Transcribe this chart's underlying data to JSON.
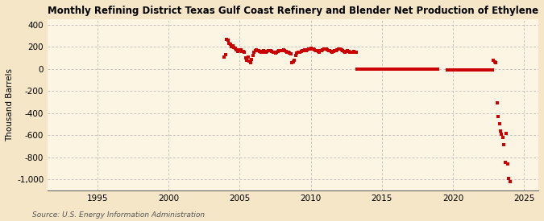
{
  "title": "Monthly Refining District Texas Gulf Coast Refinery and Blender Net Production of Ethylene",
  "ylabel": "Thousand Barrels",
  "source": "Source: U.S. Energy Information Administration",
  "background_color": "#f5e6c8",
  "plot_background_color": "#fdf5e4",
  "marker_color": "#cc0000",
  "marker": "s",
  "markersize": 2.5,
  "ylim": [
    -1100,
    450
  ],
  "yticks": [
    -1000,
    -800,
    -600,
    -400,
    -200,
    0,
    200,
    400
  ],
  "xlim_year": [
    1991.5,
    2026.0
  ],
  "xticks_years": [
    1995,
    2000,
    2005,
    2010,
    2015,
    2020,
    2025
  ],
  "data_points": [
    [
      2003.917,
      110
    ],
    [
      2004.0,
      130
    ],
    [
      2004.083,
      265
    ],
    [
      2004.167,
      258
    ],
    [
      2004.25,
      230
    ],
    [
      2004.333,
      220
    ],
    [
      2004.417,
      200
    ],
    [
      2004.5,
      210
    ],
    [
      2004.583,
      195
    ],
    [
      2004.667,
      185
    ],
    [
      2004.75,
      170
    ],
    [
      2004.833,
      155
    ],
    [
      2004.917,
      165
    ],
    [
      2005.0,
      175
    ],
    [
      2005.083,
      170
    ],
    [
      2005.167,
      160
    ],
    [
      2005.25,
      155
    ],
    [
      2005.333,
      150
    ],
    [
      2005.417,
      100
    ],
    [
      2005.5,
      80
    ],
    [
      2005.583,
      105
    ],
    [
      2005.667,
      70
    ],
    [
      2005.75,
      55
    ],
    [
      2005.833,
      85
    ],
    [
      2005.917,
      125
    ],
    [
      2006.0,
      150
    ],
    [
      2006.083,
      165
    ],
    [
      2006.167,
      172
    ],
    [
      2006.25,
      168
    ],
    [
      2006.333,
      162
    ],
    [
      2006.417,
      158
    ],
    [
      2006.5,
      153
    ],
    [
      2006.583,
      158
    ],
    [
      2006.667,
      163
    ],
    [
      2006.75,
      153
    ],
    [
      2006.833,
      148
    ],
    [
      2006.917,
      158
    ],
    [
      2007.0,
      163
    ],
    [
      2007.083,
      168
    ],
    [
      2007.167,
      163
    ],
    [
      2007.25,
      158
    ],
    [
      2007.333,
      153
    ],
    [
      2007.417,
      148
    ],
    [
      2007.5,
      143
    ],
    [
      2007.583,
      153
    ],
    [
      2007.667,
      158
    ],
    [
      2007.75,
      163
    ],
    [
      2007.833,
      168
    ],
    [
      2007.917,
      163
    ],
    [
      2008.0,
      168
    ],
    [
      2008.083,
      173
    ],
    [
      2008.167,
      163
    ],
    [
      2008.25,
      158
    ],
    [
      2008.333,
      153
    ],
    [
      2008.417,
      148
    ],
    [
      2008.5,
      143
    ],
    [
      2008.583,
      133
    ],
    [
      2008.667,
      55
    ],
    [
      2008.75,
      60
    ],
    [
      2008.833,
      75
    ],
    [
      2008.917,
      118
    ],
    [
      2009.0,
      143
    ],
    [
      2009.083,
      148
    ],
    [
      2009.167,
      153
    ],
    [
      2009.25,
      148
    ],
    [
      2009.333,
      158
    ],
    [
      2009.417,
      163
    ],
    [
      2009.5,
      168
    ],
    [
      2009.583,
      173
    ],
    [
      2009.667,
      163
    ],
    [
      2009.75,
      173
    ],
    [
      2009.833,
      178
    ],
    [
      2009.917,
      183
    ],
    [
      2010.0,
      188
    ],
    [
      2010.083,
      183
    ],
    [
      2010.167,
      178
    ],
    [
      2010.25,
      173
    ],
    [
      2010.333,
      168
    ],
    [
      2010.417,
      163
    ],
    [
      2010.5,
      158
    ],
    [
      2010.583,
      153
    ],
    [
      2010.667,
      163
    ],
    [
      2010.75,
      168
    ],
    [
      2010.833,
      173
    ],
    [
      2010.917,
      178
    ],
    [
      2011.0,
      183
    ],
    [
      2011.083,
      178
    ],
    [
      2011.167,
      173
    ],
    [
      2011.25,
      168
    ],
    [
      2011.333,
      163
    ],
    [
      2011.417,
      158
    ],
    [
      2011.5,
      153
    ],
    [
      2011.583,
      158
    ],
    [
      2011.667,
      163
    ],
    [
      2011.75,
      168
    ],
    [
      2011.833,
      173
    ],
    [
      2011.917,
      178
    ],
    [
      2012.0,
      183
    ],
    [
      2012.083,
      178
    ],
    [
      2012.167,
      173
    ],
    [
      2012.25,
      163
    ],
    [
      2012.333,
      158
    ],
    [
      2012.417,
      153
    ],
    [
      2012.5,
      158
    ],
    [
      2012.583,
      163
    ],
    [
      2012.667,
      158
    ],
    [
      2012.75,
      153
    ],
    [
      2012.833,
      148
    ],
    [
      2012.917,
      153
    ],
    [
      2013.0,
      158
    ],
    [
      2013.083,
      153
    ],
    [
      2013.167,
      148
    ],
    [
      2013.25,
      0
    ],
    [
      2013.333,
      0
    ],
    [
      2013.417,
      0
    ],
    [
      2013.5,
      0
    ],
    [
      2013.583,
      0
    ],
    [
      2013.667,
      0
    ],
    [
      2013.75,
      0
    ],
    [
      2013.833,
      0
    ],
    [
      2013.917,
      0
    ],
    [
      2014.0,
      0
    ],
    [
      2014.083,
      0
    ],
    [
      2014.167,
      0
    ],
    [
      2014.25,
      0
    ],
    [
      2014.333,
      0
    ],
    [
      2014.417,
      0
    ],
    [
      2014.5,
      0
    ],
    [
      2014.583,
      0
    ],
    [
      2014.667,
      0
    ],
    [
      2014.75,
      0
    ],
    [
      2014.833,
      0
    ],
    [
      2014.917,
      0
    ],
    [
      2015.0,
      0
    ],
    [
      2015.083,
      0
    ],
    [
      2015.167,
      0
    ],
    [
      2015.25,
      0
    ],
    [
      2015.333,
      0
    ],
    [
      2015.417,
      0
    ],
    [
      2015.5,
      0
    ],
    [
      2015.583,
      0
    ],
    [
      2015.667,
      0
    ],
    [
      2015.75,
      0
    ],
    [
      2015.833,
      0
    ],
    [
      2015.917,
      0
    ],
    [
      2016.0,
      0
    ],
    [
      2016.083,
      0
    ],
    [
      2016.167,
      0
    ],
    [
      2016.25,
      0
    ],
    [
      2016.333,
      0
    ],
    [
      2016.417,
      0
    ],
    [
      2016.5,
      0
    ],
    [
      2016.583,
      0
    ],
    [
      2016.667,
      0
    ],
    [
      2016.75,
      0
    ],
    [
      2016.833,
      0
    ],
    [
      2016.917,
      0
    ],
    [
      2017.0,
      0
    ],
    [
      2017.083,
      0
    ],
    [
      2017.167,
      0
    ],
    [
      2017.25,
      0
    ],
    [
      2017.333,
      0
    ],
    [
      2017.417,
      0
    ],
    [
      2017.5,
      0
    ],
    [
      2017.583,
      0
    ],
    [
      2017.667,
      0
    ],
    [
      2017.75,
      0
    ],
    [
      2017.833,
      0
    ],
    [
      2017.917,
      0
    ],
    [
      2018.0,
      0
    ],
    [
      2018.083,
      0
    ],
    [
      2018.167,
      0
    ],
    [
      2018.25,
      0
    ],
    [
      2018.333,
      0
    ],
    [
      2018.417,
      0
    ],
    [
      2018.5,
      0
    ],
    [
      2018.583,
      0
    ],
    [
      2018.667,
      0
    ],
    [
      2018.75,
      0
    ],
    [
      2018.833,
      0
    ],
    [
      2018.917,
      0
    ],
    [
      2019.583,
      -8
    ],
    [
      2019.667,
      -8
    ],
    [
      2019.75,
      -8
    ],
    [
      2019.833,
      -8
    ],
    [
      2019.917,
      -8
    ],
    [
      2020.0,
      -8
    ],
    [
      2020.083,
      -8
    ],
    [
      2020.167,
      -8
    ],
    [
      2020.25,
      -8
    ],
    [
      2020.333,
      -8
    ],
    [
      2020.417,
      -8
    ],
    [
      2020.5,
      -8
    ],
    [
      2020.583,
      -8
    ],
    [
      2020.667,
      -8
    ],
    [
      2020.75,
      -8
    ],
    [
      2020.833,
      -8
    ],
    [
      2020.917,
      -8
    ],
    [
      2021.0,
      -8
    ],
    [
      2021.083,
      -8
    ],
    [
      2021.167,
      -8
    ],
    [
      2021.25,
      -8
    ],
    [
      2021.333,
      -8
    ],
    [
      2021.417,
      -8
    ],
    [
      2021.5,
      -8
    ],
    [
      2021.583,
      -8
    ],
    [
      2021.667,
      -8
    ],
    [
      2021.75,
      -8
    ],
    [
      2021.833,
      -8
    ],
    [
      2021.917,
      -8
    ],
    [
      2022.0,
      -8
    ],
    [
      2022.083,
      -8
    ],
    [
      2022.167,
      -8
    ],
    [
      2022.25,
      -8
    ],
    [
      2022.333,
      -8
    ],
    [
      2022.417,
      -8
    ],
    [
      2022.5,
      -8
    ],
    [
      2022.583,
      -8
    ],
    [
      2022.667,
      -8
    ],
    [
      2022.75,
      -8
    ],
    [
      2022.833,
      80
    ],
    [
      2022.917,
      65
    ],
    [
      2023.0,
      55
    ],
    [
      2023.083,
      -310
    ],
    [
      2023.167,
      -430
    ],
    [
      2023.25,
      -500
    ],
    [
      2023.333,
      -560
    ],
    [
      2023.417,
      -595
    ],
    [
      2023.5,
      -625
    ],
    [
      2023.583,
      -685
    ],
    [
      2023.667,
      -845
    ],
    [
      2023.75,
      -585
    ],
    [
      2023.833,
      -865
    ],
    [
      2023.917,
      -990
    ],
    [
      2024.0,
      -1020
    ]
  ]
}
